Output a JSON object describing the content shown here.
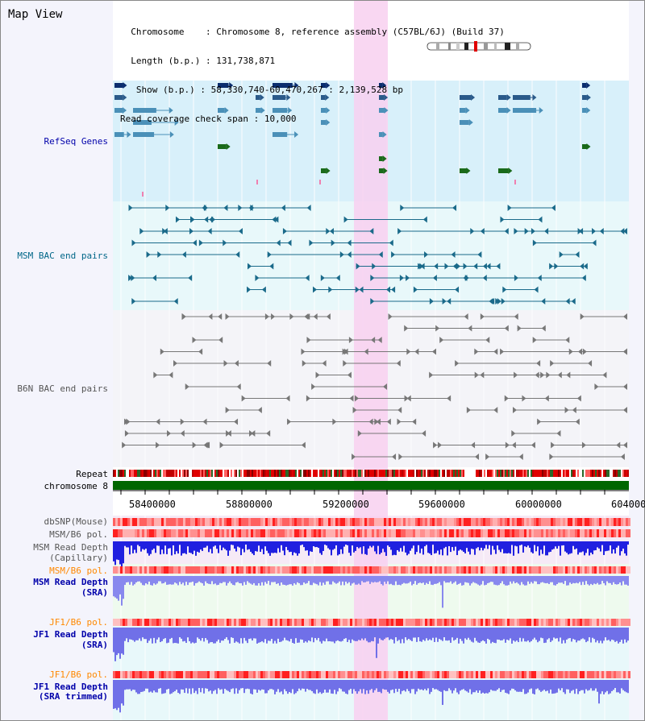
{
  "title": "Map View",
  "info": {
    "chromosome_key": "  Chromosome    ",
    "chromosome_val": ": Chromosome 8, reference assembly (C57BL/6J) (Build 37)",
    "length_key": "  Length (b.p.) ",
    "length_val": ": 131,738,871",
    "show_key": "   Show (b.p.) ",
    "show_val": ": 58,330,740-60,470,267 : 2,139,528 bp",
    "read_key": "Read coverage check span ",
    "read_val": ": 10,000"
  },
  "tracks": {
    "refseq": "RefSeq Genes",
    "msm_bac": "MSM BAC end pairs",
    "b6n_bac": "B6N BAC end pairs",
    "repeat": "Repeat",
    "chromosome": "chromosome 8",
    "dbsnp": "dbSNP(Mouse)",
    "msm_b6_pol_1": "MSM/B6 pol.",
    "msm_depth_cap_1": "MSM Read Depth",
    "msm_depth_cap_2": "(Capillary)",
    "msm_b6_pol_2": "MSM/B6 pol.",
    "msm_depth_sra_1": "MSM Read Depth",
    "msm_depth_sra_2": "(SRA)",
    "jf1_b6_pol_1": "JF1/B6 pol.",
    "jf1_depth_sra_1": "JF1 Read Depth",
    "jf1_depth_sra_2": "(SRA)",
    "jf1_b6_pol_2": "JF1/B6 pol.",
    "jf1_depth_trim_1": "JF1 Read Depth",
    "jf1_depth_trim_2": "(SRA trimmed)"
  },
  "axis_ticks": [
    "58400000",
    "58800000",
    "59200000",
    "59600000",
    "60000000",
    "604000"
  ],
  "colors": {
    "refseq_label": "#0000aa",
    "msm_label": "#006688",
    "b6n_label": "#555555",
    "msm_pol_label": "#ff8800",
    "jf1_pol_label": "#ff8800",
    "depth_label": "#0000aa",
    "highlight": "#f8d4f0",
    "refseq_bg": "#d8f0fa",
    "msm_bg": "#e8f8fa",
    "b6n_bg": "#f4f4f8",
    "sra_bg": "#eefaee",
    "jf1_bg": "#e8f8fa",
    "chrom_green": "#006600"
  }
}
